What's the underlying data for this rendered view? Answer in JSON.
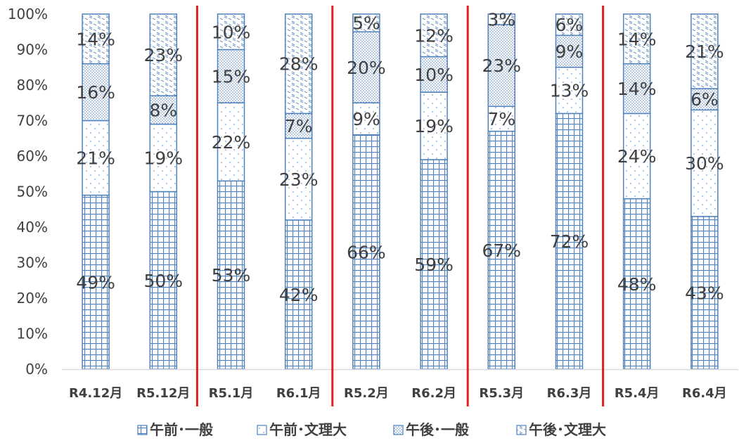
{
  "chart_data": {
    "type": "bar",
    "stacked": "percent",
    "categories": [
      "R4.12月",
      "R5.12月",
      "R5.1月",
      "R6.1月",
      "R5.2月",
      "R6.2月",
      "R5.3月",
      "R6.3月",
      "R5.4月",
      "R6.4月"
    ],
    "series": [
      {
        "name": "午前･一般",
        "pattern": "grid",
        "values": [
          49,
          50,
          53,
          42,
          66,
          59,
          67,
          72,
          48,
          43
        ]
      },
      {
        "name": "午前･文理大",
        "pattern": "dots",
        "values": [
          21,
          19,
          22,
          23,
          9,
          19,
          7,
          13,
          24,
          30
        ]
      },
      {
        "name": "午後･一般",
        "pattern": "dense-dots",
        "values": [
          16,
          8,
          15,
          7,
          20,
          10,
          23,
          9,
          14,
          6
        ]
      },
      {
        "name": "午後･文理大",
        "pattern": "dashes",
        "values": [
          14,
          23,
          10,
          28,
          5,
          12,
          3,
          6,
          14,
          21
        ]
      }
    ],
    "labels": [
      [
        "49%",
        "21%",
        "16%",
        "14%"
      ],
      [
        "50%",
        "19%",
        "8%",
        "23%"
      ],
      [
        "53%",
        "22%",
        "15%",
        "10%"
      ],
      [
        "42%",
        "23%",
        "7%",
        "28%"
      ],
      [
        "66%",
        "9%",
        "20%",
        "5%"
      ],
      [
        "59%",
        "19%",
        "10%",
        "12%"
      ],
      [
        "67%",
        "7%",
        "23%",
        "3%"
      ],
      [
        "72%",
        "13%",
        "9%",
        "6%"
      ],
      [
        "48%",
        "24%",
        "14%",
        "14%"
      ],
      [
        "43%",
        "30%",
        "6%",
        "21%"
      ]
    ],
    "y_ticks": [
      "0%",
      "10%",
      "20%",
      "30%",
      "40%",
      "50%",
      "60%",
      "70%",
      "80%",
      "90%",
      "100%"
    ],
    "ylim": [
      0,
      100
    ],
    "separators_after_categories": [
      1,
      3,
      5,
      7
    ],
    "legend": "bottom",
    "grid": false,
    "colors": {
      "bar": "#4f81bd",
      "separator": "#e02020",
      "axis": "#d9d9d9",
      "text": "#404040",
      "label": "#404040"
    }
  }
}
